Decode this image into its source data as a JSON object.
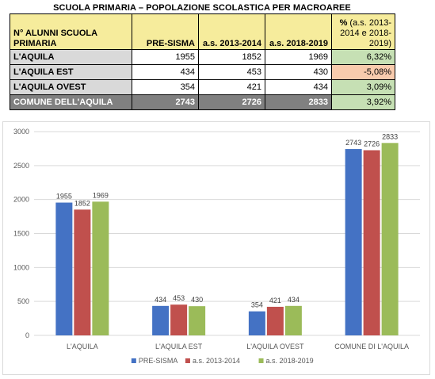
{
  "table": {
    "title": "SCUOLA PRIMARIA – POPOLAZIONE SCOLASTICA PER MACROAREE",
    "headers": {
      "label": "N° ALUNNI SCUOLA PRIMARIA",
      "col1": "PRE-SISMA",
      "col2": "a.s. 2013-2014",
      "col3": "a.s. 2018-2019",
      "pct_bold": "%",
      "pct_rest": " (a.s. 2013-2014 e 2018-2019)"
    },
    "rows": [
      {
        "label": "L'AQUILA",
        "v1": "1955",
        "v2": "1852",
        "v3": "1969",
        "pct": "6,32%"
      },
      {
        "label": "L'AQUILA EST",
        "v1": "434",
        "v2": "453",
        "v3": "430",
        "pct": "-5,08%"
      },
      {
        "label": "L'AQUILA OVEST",
        "v1": "354",
        "v2": "421",
        "v3": "434",
        "pct": "3,09%"
      },
      {
        "label": "COMUNE DELL'AQUILA",
        "v1": "2743",
        "v2": "2726",
        "v3": "2833",
        "pct": "3,92%"
      }
    ]
  },
  "chart_data": {
    "type": "bar",
    "categories": [
      "L'AQUILA",
      "L'AQUILA EST",
      "L'AQUILA OVEST",
      "COMUNE DI L'AQUILA"
    ],
    "series": [
      {
        "name": "PRE-SISMA",
        "values": [
          1955,
          434,
          354,
          2743
        ],
        "color": "#4472c4"
      },
      {
        "name": "a.s. 2013-2014",
        "values": [
          1852,
          453,
          421,
          2726
        ],
        "color": "#c0504d"
      },
      {
        "name": "a.s. 2018-2019",
        "values": [
          1969,
          430,
          434,
          2833
        ],
        "color": "#9bbb59"
      }
    ],
    "yticks": [
      "0",
      "500",
      "1000",
      "1500",
      "2000",
      "2500",
      "3000"
    ],
    "ylim": [
      0,
      3000
    ],
    "grid": true,
    "legend": "bottom",
    "data_labels": true
  }
}
